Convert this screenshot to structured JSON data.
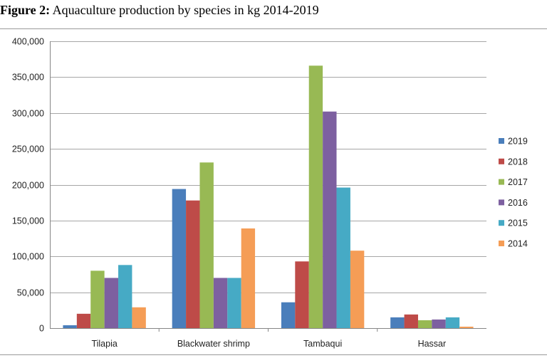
{
  "figure": {
    "title_bold": "Figure 2:",
    "title_rest": "Aquaculture production by species in kg 2014-2019"
  },
  "chart_data": {
    "type": "bar",
    "title": "Aquaculture production by species in kg 2014-2019",
    "xlabel": "",
    "ylabel": "",
    "categories": [
      "Tilapia",
      "Blackwater shrimp",
      "Tambaqui",
      "Hassar"
    ],
    "ylim": [
      0,
      400000
    ],
    "yticks": [
      0,
      50000,
      100000,
      150000,
      200000,
      250000,
      300000,
      350000,
      400000
    ],
    "ytick_labels": [
      "0",
      "50,000",
      "100,000",
      "150,000",
      "200,000",
      "250,000",
      "300,000",
      "350,000",
      "400,000"
    ],
    "grid": true,
    "legend_position": "right",
    "series": [
      {
        "name": "2019",
        "color": "#4a7ebb",
        "values": [
          4000,
          194000,
          36000,
          15000
        ]
      },
      {
        "name": "2018",
        "color": "#be4b48",
        "values": [
          20000,
          178000,
          93000,
          19000
        ]
      },
      {
        "name": "2017",
        "color": "#98b954",
        "values": [
          80000,
          231000,
          366000,
          11000
        ]
      },
      {
        "name": "2016",
        "color": "#7d60a0",
        "values": [
          70000,
          70000,
          302000,
          12000
        ]
      },
      {
        "name": "2015",
        "color": "#46aac5",
        "values": [
          88000,
          70000,
          196000,
          15000
        ]
      },
      {
        "name": "2014",
        "color": "#f59d56",
        "values": [
          29000,
          139000,
          108000,
          2000
        ]
      }
    ]
  }
}
